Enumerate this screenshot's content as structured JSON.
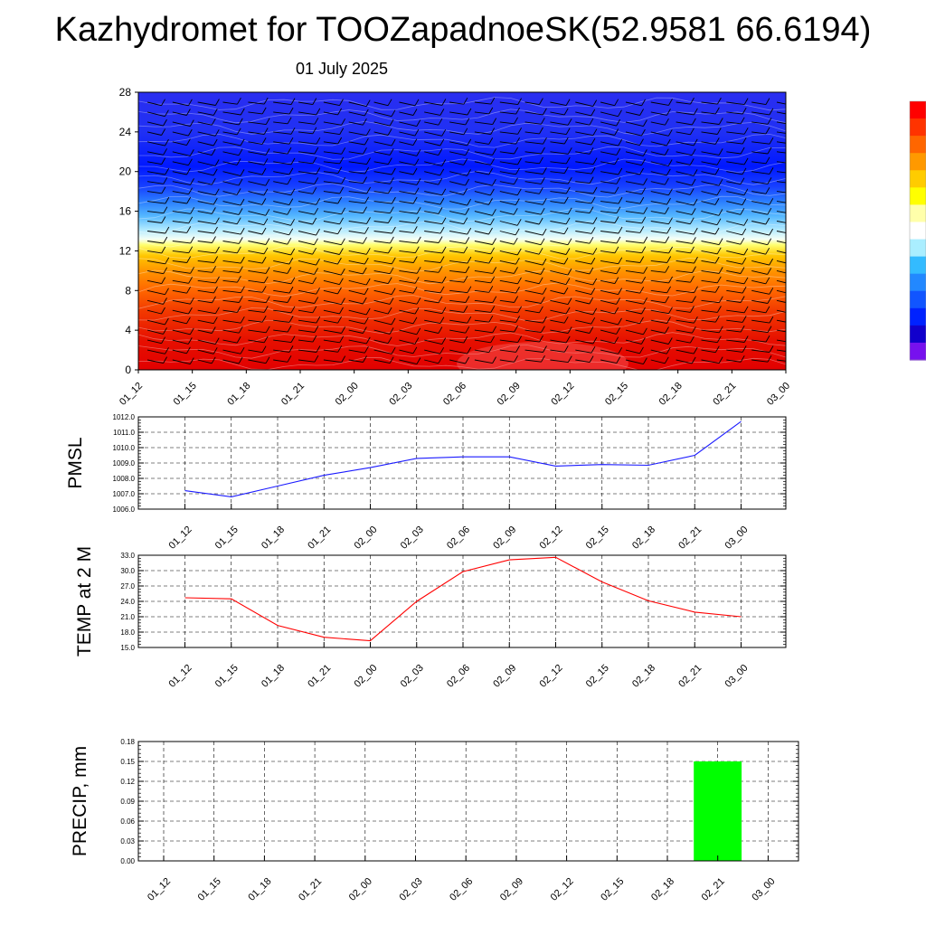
{
  "title": "Kazhydromet for TOOZapadnoeSK(52.9581 66.6194)",
  "date": "01 July 2025",
  "time_labels": [
    "01_12",
    "01_15",
    "01_18",
    "01_21",
    "02_00",
    "02_03",
    "02_06",
    "02_09",
    "02_12",
    "02_15",
    "02_18",
    "02_21",
    "03_00"
  ],
  "colors": {
    "pmsl_line": "#1a1aff",
    "temp_line": "#ff0000",
    "precip_bar": "#00ff00",
    "grid": "#000000"
  },
  "chart_data": [
    {
      "type": "heatmap",
      "panel": "vertical-section",
      "x": [
        "01_12",
        "01_15",
        "01_18",
        "01_21",
        "02_00",
        "02_03",
        "02_06",
        "02_09",
        "02_12",
        "02_15",
        "02_18",
        "02_21",
        "03_00"
      ],
      "y_ticks": [
        0,
        4,
        8,
        12,
        16,
        20,
        24,
        28
      ],
      "ylim": [
        0,
        28
      ],
      "color_levels": [
        {
          "y": 0,
          "color": "#e20000"
        },
        {
          "y": 3,
          "color": "#e61000"
        },
        {
          "y": 6,
          "color": "#f23a00"
        },
        {
          "y": 8,
          "color": "#ff6600"
        },
        {
          "y": 10,
          "color": "#ff9500"
        },
        {
          "y": 11.5,
          "color": "#ffc600"
        },
        {
          "y": 12.6,
          "color": "#ffff70"
        },
        {
          "y": 13.2,
          "color": "#f4fff6"
        },
        {
          "y": 14.2,
          "color": "#aee8ff"
        },
        {
          "y": 15.5,
          "color": "#55b8ff"
        },
        {
          "y": 17,
          "color": "#2a7dff"
        },
        {
          "y": 18.5,
          "color": "#1740ff"
        },
        {
          "y": 20.5,
          "color": "#0018ff"
        },
        {
          "y": 24,
          "color": "#2030f4"
        },
        {
          "y": 28,
          "color": "#2a2ef0"
        }
      ],
      "colorbar_colors": [
        "#ff0000",
        "#ff3300",
        "#ff6600",
        "#ff9900",
        "#ffcc00",
        "#ffff00",
        "#ffffaa",
        "#ffffff",
        "#aaeeff",
        "#33bbff",
        "#2288ff",
        "#1155ff",
        "#0022ff",
        "#1100cc",
        "#7711ee"
      ],
      "legend": "right"
    },
    {
      "type": "line",
      "panel": "pmsl",
      "ylabel": "PMSL",
      "x": [
        "01_12",
        "01_15",
        "01_18",
        "01_21",
        "02_00",
        "02_03",
        "02_06",
        "02_09",
        "02_12",
        "02_15",
        "02_18",
        "02_21",
        "03_00"
      ],
      "values": [
        1007.2,
        1006.8,
        1007.5,
        1008.2,
        1008.7,
        1009.3,
        1009.4,
        1009.4,
        1008.8,
        1008.9,
        1008.85,
        1009.5,
        1011.7
      ],
      "ylim": [
        1006.0,
        1012.0
      ],
      "y_ticks": [
        "1006.0",
        "1007.0",
        "1008.0",
        "1009.0",
        "1010.0",
        "1011.0",
        "1012.0"
      ],
      "grid": true
    },
    {
      "type": "line",
      "panel": "temperature",
      "ylabel": "TEMP at 2 M",
      "x": [
        "01_12",
        "01_15",
        "01_18",
        "01_21",
        "02_00",
        "02_03",
        "02_06",
        "02_09",
        "02_12",
        "02_15",
        "02_18",
        "02_21",
        "03_00"
      ],
      "values": [
        24.7,
        24.5,
        19.3,
        17.0,
        16.3,
        24.0,
        29.8,
        32.1,
        32.6,
        27.8,
        24.1,
        21.9,
        21.0
      ],
      "ylim": [
        15.0,
        33.0
      ],
      "y_ticks": [
        "15.0",
        "18.0",
        "21.0",
        "24.0",
        "27.0",
        "30.0",
        "33.0"
      ],
      "grid": true
    },
    {
      "type": "bar",
      "panel": "precipitation",
      "ylabel": "PRECIP, mm",
      "categories": [
        "01_12",
        "01_15",
        "01_18",
        "01_21",
        "02_00",
        "02_03",
        "02_06",
        "02_09",
        "02_12",
        "02_15",
        "02_18",
        "02_21",
        "03_00"
      ],
      "values": [
        0,
        0,
        0,
        0,
        0,
        0,
        0,
        0,
        0,
        0,
        0,
        0.15,
        0
      ],
      "ylim": [
        0,
        0.18
      ],
      "y_ticks": [
        "0.00",
        "0.03",
        "0.06",
        "0.09",
        "0.12",
        "0.15",
        "0.18"
      ],
      "grid": true
    }
  ]
}
